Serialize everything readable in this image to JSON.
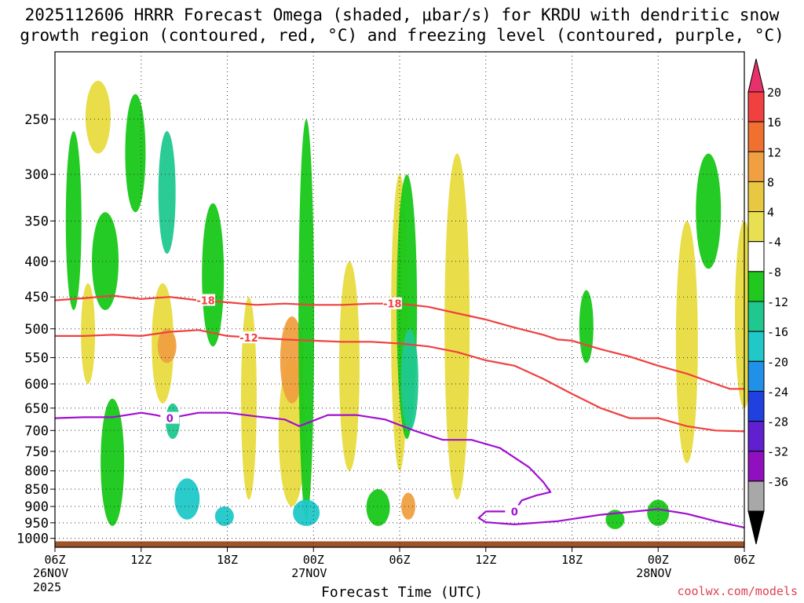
{
  "chart_data": {
    "type": "heatmap",
    "title_line1": "2025112606 HRRR Forecast Omega (shaded, μbar/s) for KRDU with dendritic snow",
    "title_line2": "growth region (contoured, red, °C) and freezing level (contoured, purple, °C)",
    "xlabel": "Forecast Time (UTC)",
    "x_ticks": [
      "06Z",
      "12Z",
      "18Z",
      "00Z",
      "12Z",
      "18Z",
      "00Z",
      "06Z"
    ],
    "x_tick_hours": [
      0,
      6,
      12,
      18,
      30,
      36,
      42,
      48
    ],
    "x_tick_hours_note": "hours after 2025-11-26 06Z",
    "x_tick_06z_27": "06Z",
    "date_labels": [
      {
        "hour": 0,
        "lines": [
          "26NOV",
          "2025"
        ]
      },
      {
        "hour": 18,
        "lines": [
          "27NOV"
        ]
      },
      {
        "hour": 42,
        "lines": [
          "28NOV"
        ]
      }
    ],
    "y_ticks": [
      250,
      300,
      350,
      400,
      450,
      500,
      550,
      600,
      650,
      700,
      750,
      800,
      850,
      900,
      950,
      1000
    ],
    "y_range_hpa": [
      200,
      1030
    ],
    "x_range_hours": [
      0,
      48
    ],
    "colorbar": {
      "labels": [
        "20",
        "16",
        "12",
        "8",
        "4",
        "-4",
        "-8",
        "-12",
        "-16",
        "-20",
        "-24",
        "-28",
        "-32",
        "-36"
      ],
      "colors": [
        "#e8306a",
        "#f04040",
        "#f07030",
        "#f0a040",
        "#e8c840",
        "#e8e050",
        "#ffffff",
        "#20c820",
        "#20c890",
        "#20c8c8",
        "#2090e8",
        "#2040e0",
        "#6020d0",
        "#9010c0",
        "#a8a8a8",
        "#000000"
      ]
    },
    "contours": [
      {
        "name": "dgz-minus-18",
        "label": "-18",
        "color": "#f04040",
        "points": [
          [
            0,
            455
          ],
          [
            2,
            452
          ],
          [
            4,
            448
          ],
          [
            6,
            453
          ],
          [
            8,
            450
          ],
          [
            10,
            455
          ],
          [
            12,
            458
          ],
          [
            14,
            462
          ],
          [
            16,
            460
          ],
          [
            18,
            462
          ],
          [
            20,
            462
          ],
          [
            22,
            460
          ],
          [
            24,
            460
          ],
          [
            26,
            465
          ],
          [
            28,
            475
          ],
          [
            30,
            485
          ],
          [
            32,
            498
          ],
          [
            34,
            510
          ],
          [
            35,
            518
          ],
          [
            36,
            520
          ],
          [
            38,
            535
          ],
          [
            40,
            548
          ],
          [
            42,
            565
          ],
          [
            44,
            580
          ],
          [
            46,
            600
          ],
          [
            47,
            610
          ],
          [
            48,
            610
          ]
        ]
      },
      {
        "name": "dgz-minus-12",
        "label": "-12",
        "color": "#f04040",
        "points": [
          [
            0,
            512
          ],
          [
            2,
            512
          ],
          [
            4,
            510
          ],
          [
            6,
            512
          ],
          [
            8,
            505
          ],
          [
            10,
            502
          ],
          [
            12,
            512
          ],
          [
            14,
            515
          ],
          [
            16,
            518
          ],
          [
            18,
            520
          ],
          [
            20,
            522
          ],
          [
            22,
            522
          ],
          [
            24,
            525
          ],
          [
            26,
            530
          ],
          [
            28,
            540
          ],
          [
            30,
            555
          ],
          [
            32,
            565
          ],
          [
            34,
            590
          ],
          [
            36,
            620
          ],
          [
            38,
            650
          ],
          [
            40,
            672
          ],
          [
            42,
            672
          ],
          [
            44,
            690
          ],
          [
            46,
            700
          ],
          [
            48,
            702
          ]
        ]
      },
      {
        "name": "freezing-level",
        "label": "0",
        "color": "#a010d0",
        "points": [
          [
            0,
            672
          ],
          [
            2,
            670
          ],
          [
            4,
            670
          ],
          [
            6,
            660
          ],
          [
            7,
            665
          ],
          [
            8,
            672
          ],
          [
            10,
            660
          ],
          [
            12,
            660
          ],
          [
            14,
            668
          ],
          [
            16,
            675
          ],
          [
            17,
            690
          ],
          [
            19,
            665
          ],
          [
            21,
            665
          ],
          [
            23,
            675
          ],
          [
            25,
            700
          ],
          [
            27,
            722
          ],
          [
            29,
            722
          ],
          [
            31,
            742
          ],
          [
            33,
            790
          ],
          [
            34,
            830
          ],
          [
            34.5,
            858
          ],
          [
            33.5,
            868
          ],
          [
            32.5,
            882
          ],
          [
            32,
            915
          ],
          [
            30,
            915
          ],
          [
            29.5,
            935
          ],
          [
            30,
            948
          ],
          [
            32,
            955
          ],
          [
            35,
            945
          ],
          [
            38,
            925
          ],
          [
            42,
            908
          ],
          [
            44,
            922
          ],
          [
            46,
            945
          ],
          [
            48,
            965
          ]
        ]
      }
    ],
    "shaded_regions": [
      {
        "level": "4 to 8",
        "hour": 2.3,
        "p_min": 430,
        "p_max": 600
      },
      {
        "level": "4 to 8",
        "hour": 3,
        "p_min": 220,
        "p_max": 280
      },
      {
        "level": "4 to 8",
        "hour": 7.5,
        "p_min": 430,
        "p_max": 640
      },
      {
        "level": "8 to 12",
        "hour": 7.8,
        "p_min": 500,
        "p_max": 560
      },
      {
        "level": "4 to 8",
        "hour": 13.5,
        "p_min": 450,
        "p_max": 880
      },
      {
        "level": "4 to 8",
        "hour": 16.5,
        "p_min": 550,
        "p_max": 900
      },
      {
        "level": "8 to 12",
        "hour": 16.5,
        "p_min": 480,
        "p_max": 640
      },
      {
        "level": "4 to 8",
        "hour": 20.5,
        "p_min": 400,
        "p_max": 800
      },
      {
        "level": "4 to 8",
        "hour": 24,
        "p_min": 300,
        "p_max": 800
      },
      {
        "level": "8 to 12",
        "hour": 24.6,
        "p_min": 860,
        "p_max": 940
      },
      {
        "level": "4 to 8",
        "hour": 28,
        "p_min": 280,
        "p_max": 880
      },
      {
        "level": "4 to 8",
        "hour": 44,
        "p_min": 350,
        "p_max": 780
      },
      {
        "level": "4 to 8",
        "hour": 48,
        "p_min": 350,
        "p_max": 650
      },
      {
        "level": "-4 to -8",
        "hour": 1.3,
        "p_min": 260,
        "p_max": 470
      },
      {
        "level": "-4 to -8",
        "hour": 3.5,
        "p_min": 340,
        "p_max": 470
      },
      {
        "level": "-4 to -8",
        "hour": 4,
        "p_min": 630,
        "p_max": 960
      },
      {
        "level": "-4 to -8",
        "hour": 5.6,
        "p_min": 230,
        "p_max": 340
      },
      {
        "level": "-8 to -12",
        "hour": 7.8,
        "p_min": 260,
        "p_max": 390
      },
      {
        "level": "-8 to -12",
        "hour": 8.2,
        "p_min": 640,
        "p_max": 720
      },
      {
        "level": "-12 to -16",
        "hour": 9.2,
        "p_min": 820,
        "p_max": 940
      },
      {
        "level": "-4 to -8",
        "hour": 11,
        "p_min": 330,
        "p_max": 530
      },
      {
        "level": "-12 to -16",
        "hour": 11.8,
        "p_min": 900,
        "p_max": 960
      },
      {
        "level": "-4 to -8",
        "hour": 17.5,
        "p_min": 250,
        "p_max": 940
      },
      {
        "level": "-12 to -16",
        "hour": 17.5,
        "p_min": 880,
        "p_max": 960
      },
      {
        "level": "-4 to -8",
        "hour": 22.5,
        "p_min": 850,
        "p_max": 960
      },
      {
        "level": "-4 to -8",
        "hour": 24.5,
        "p_min": 300,
        "p_max": 720
      },
      {
        "level": "-8 to -12",
        "hour": 24.7,
        "p_min": 500,
        "p_max": 700
      },
      {
        "level": "-4 to -8",
        "hour": 37,
        "p_min": 440,
        "p_max": 560
      },
      {
        "level": "-4 to -8",
        "hour": 45.5,
        "p_min": 280,
        "p_max": 410
      },
      {
        "level": "-4 to -8",
        "hour": 42,
        "p_min": 880,
        "p_max": 960
      },
      {
        "level": "-4 to -8",
        "hour": 39,
        "p_min": 910,
        "p_max": 970
      }
    ],
    "terrain_color": "#a05228",
    "surface_hpa": 1010
  },
  "branding": {
    "site": "coolwx.com/models"
  }
}
